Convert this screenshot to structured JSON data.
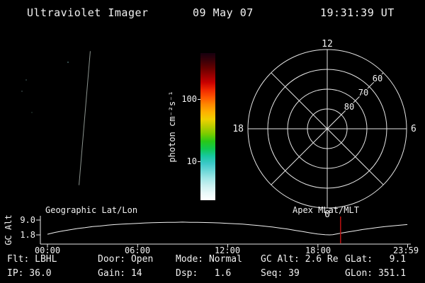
{
  "header": {
    "title": "Ultraviolet Imager",
    "date": "09 May 07",
    "time": "19:31:39 UT"
  },
  "colors": {
    "background": "#000000",
    "foreground": "#f2f2f2",
    "time_marker": "#bb1111"
  },
  "status": {
    "rows": [
      {
        "cells": [
          "Flt: LBHL",
          "Door: Open",
          "Mode: Normal",
          "GC Alt: 2.6 Re",
          "GLat:   9.1"
        ]
      },
      {
        "cells": [
          "IP: 36.0",
          "Gain: 14",
          "Dsp:   1.6",
          "Seq: 39",
          "GLon: 351.1"
        ]
      }
    ]
  },
  "chart_data": [
    {
      "type": "line",
      "title": "",
      "ylabel": "GC Alt",
      "x_tick_labels": [
        "00:00",
        "06:00",
        "12:00",
        "18:00",
        "23:59"
      ],
      "x_tick_hours": [
        0,
        6,
        12,
        18,
        23.98
      ],
      "y_tick_labels": [
        "9.0",
        "1.8"
      ],
      "xlim_hours": [
        0,
        24
      ],
      "ylim": [
        1.8,
        9.0
      ],
      "annotations": [
        "Geographic Lat/Lon",
        "Apex MLat/MLT"
      ],
      "series": [
        {
          "name": "gc-altitude-re",
          "x": [
            0,
            0.5,
            1,
            1.5,
            2,
            2.5,
            3,
            3.5,
            4,
            4.5,
            5,
            5.5,
            6,
            6.5,
            7,
            7.5,
            8,
            8.5,
            9,
            9.5,
            10,
            10.5,
            11,
            11.5,
            12,
            12.5,
            13,
            13.5,
            14,
            14.5,
            15,
            15.5,
            16,
            16.5,
            17,
            17.5,
            18,
            18.5,
            18.8,
            19,
            19.5,
            20,
            20.5,
            21,
            21.5,
            22,
            22.5,
            23,
            23.5,
            23.98
          ],
          "y": [
            2.1,
            3.0,
            3.7,
            4.3,
            4.9,
            5.3,
            5.8,
            6.1,
            6.5,
            6.8,
            7.0,
            7.2,
            7.4,
            7.6,
            7.7,
            7.8,
            7.9,
            7.9,
            8.0,
            7.9,
            7.9,
            7.8,
            7.7,
            7.6,
            7.4,
            7.2,
            7.0,
            6.7,
            6.4,
            6.0,
            5.6,
            5.1,
            4.6,
            4.0,
            3.4,
            2.8,
            2.2,
            1.9,
            1.8,
            1.9,
            2.6,
            3.2,
            3.8,
            4.4,
            4.9,
            5.4,
            5.8,
            6.2,
            6.5,
            6.8
          ]
        }
      ],
      "marker": {
        "time_hours": 19.53,
        "color": "#bb1111"
      }
    },
    {
      "type": "polar-grid",
      "mlt_labels": {
        "top": "12",
        "left": "18",
        "right": "6",
        "bottom": "0"
      },
      "latitude_circles": [
        60,
        70,
        80
      ],
      "latitude_labels": [
        "60",
        "70",
        "80"
      ]
    },
    {
      "type": "colorbar",
      "label": "photon cm⁻²s⁻¹",
      "scale": "log",
      "tick_labels": [
        "100",
        "10"
      ],
      "colors_bottom_to_top": [
        "#ffffff",
        "#e9f9f9",
        "#c9f0f0",
        "#9fe6e6",
        "#6cd8d8",
        "#3cc8c8",
        "#18c8a0",
        "#10c850",
        "#28c818",
        "#78cc00",
        "#b8cc00",
        "#f0d000",
        "#ffb000",
        "#ff8800",
        "#ff5500",
        "#f02800",
        "#c80000",
        "#960000",
        "#640000",
        "#3a0008",
        "#16000e"
      ]
    }
  ]
}
